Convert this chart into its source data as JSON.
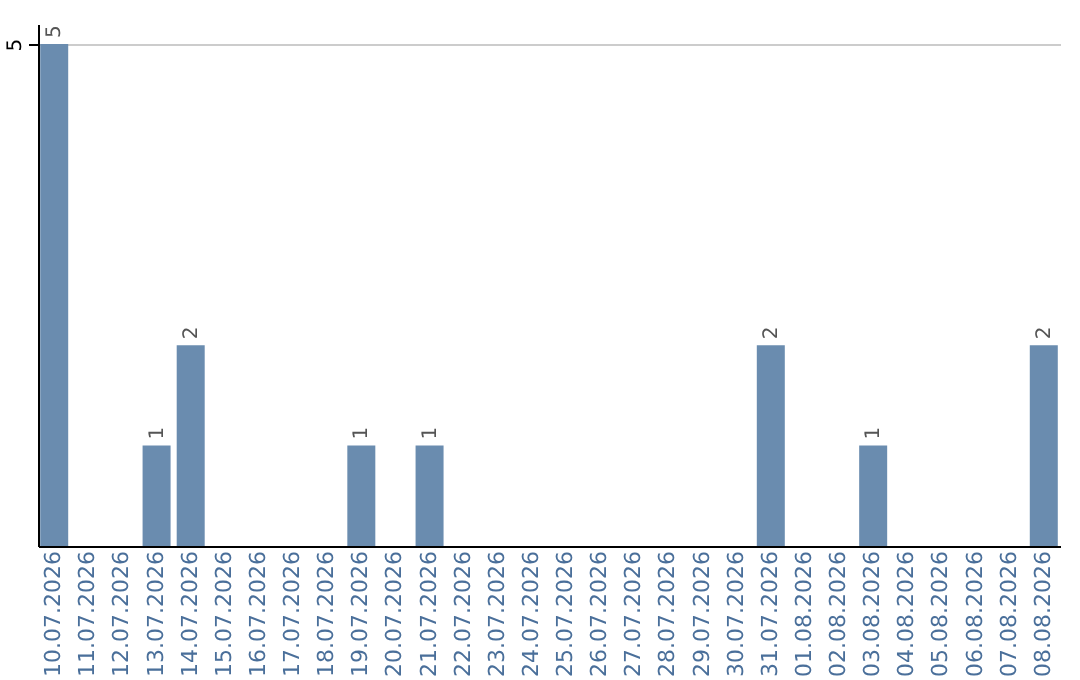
{
  "chart_data": {
    "type": "bar",
    "categories": [
      "10.07.2026",
      "11.07.2026",
      "12.07.2026",
      "13.07.2026",
      "14.07.2026",
      "15.07.2026",
      "16.07.2026",
      "17.07.2026",
      "18.07.2026",
      "19.07.2026",
      "20.07.2026",
      "21.07.2026",
      "22.07.2026",
      "23.07.2026",
      "24.07.2026",
      "25.07.2026",
      "26.07.2026",
      "27.07.2026",
      "28.07.2026",
      "29.07.2026",
      "30.07.2026",
      "31.07.2026",
      "01.08.2026",
      "02.08.2026",
      "03.08.2026",
      "04.08.2026",
      "05.08.2026",
      "06.08.2026",
      "07.08.2026",
      "08.08.2026"
    ],
    "values": [
      5,
      0,
      0,
      1,
      2,
      0,
      0,
      0,
      0,
      1,
      0,
      1,
      0,
      0,
      0,
      0,
      0,
      0,
      0,
      0,
      0,
      2,
      0,
      0,
      1,
      0,
      0,
      0,
      0,
      2
    ],
    "value_labels": [
      "5",
      null,
      null,
      "1",
      "2",
      null,
      null,
      null,
      null,
      "1",
      null,
      "1",
      null,
      null,
      null,
      null,
      null,
      null,
      null,
      null,
      null,
      "2",
      null,
      null,
      "1",
      null,
      null,
      null,
      null,
      "2"
    ],
    "color": "#6a8caf",
    "ylim": [
      0,
      5.2
    ],
    "yticks": [
      5
    ],
    "grid": "y"
  }
}
